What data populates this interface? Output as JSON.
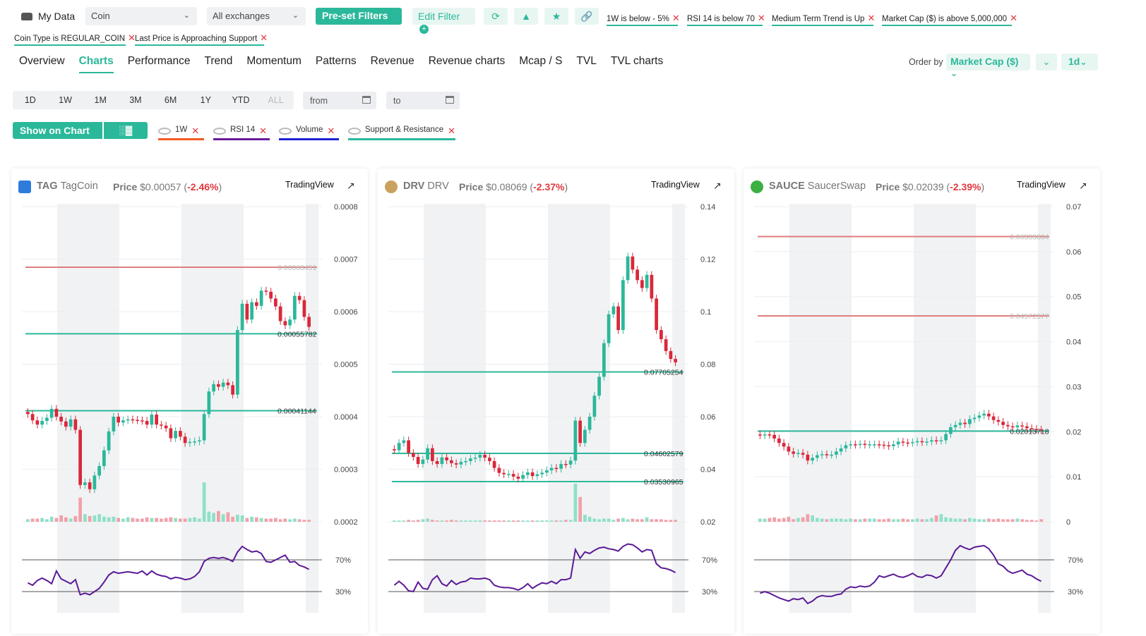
{
  "topbar": {
    "mydata_label": "My Data",
    "asset_select": "Coin",
    "exchange_select": "All exchanges",
    "preset_filters": "Pre-set Filters",
    "edit_filter": "Edit Filter",
    "filters": [
      "1W is below - 5%",
      "RSI 14 is below 70",
      "Medium Term Trend is Up",
      "Market Cap ($) is above 5,000,000",
      "Coin Type is REGULAR_COIN",
      "Last Price is Approaching Support"
    ]
  },
  "tabs": [
    "Overview",
    "Charts",
    "Performance",
    "Trend",
    "Momentum",
    "Patterns",
    "Revenue",
    "Revenue charts",
    "Mcap / S",
    "TVL",
    "TVL charts"
  ],
  "active_tab": "Charts",
  "order": {
    "label": "Order by",
    "value": "Market Cap ($)",
    "interval": "1d"
  },
  "periods": [
    "1D",
    "1W",
    "1M",
    "3M",
    "6M",
    "1Y",
    "YTD",
    "ALL"
  ],
  "date_from": "from",
  "date_to": "to",
  "show_on_chart": "Show on Chart",
  "indicators": [
    {
      "label": "1W",
      "color": "#f15a22"
    },
    {
      "label": "RSI 14",
      "color": "#6a1b9a"
    },
    {
      "label": "Volume",
      "color": "#1e22d4"
    },
    {
      "label": "Support & Resistance",
      "color": "#2bb89a"
    }
  ],
  "colors": {
    "accent": "#2bb89a",
    "up": "#2bb89a",
    "down": "#d9283a",
    "negative": "#e0393e",
    "rsi": "#5b1a96",
    "resistance": "#e07e7e",
    "support": "#2bb89a"
  },
  "cards": [
    {
      "symbol": "TAG",
      "name": "TagCoin",
      "price_label": "Price",
      "price": "$0.00057",
      "change": "-2.46%",
      "tv": "TradingView",
      "chart_data": {
        "type": "candlestick",
        "y_ticks": [
          "0.0008",
          "0.0007",
          "0.0006",
          "0.0005",
          "0.0004",
          "0.0003",
          "0.0002"
        ],
        "y_range": [
          0.0002,
          0.0008
        ],
        "rsi_ticks": [
          "70%",
          "30%"
        ],
        "levels": [
          {
            "label": "0.00068451",
            "value": 0.00068451,
            "kind": "resistance"
          },
          {
            "label": "0.00055782",
            "value": 0.00055782,
            "kind": "support"
          },
          {
            "label": "0.00041144",
            "value": 0.00041144,
            "kind": "support"
          }
        ],
        "closes": [
          0.000405,
          0.000393,
          0.000385,
          0.000392,
          0.000398,
          0.000415,
          0.0004,
          0.000391,
          0.000381,
          0.000395,
          0.000375,
          0.00027,
          0.000275,
          0.000262,
          0.000288,
          0.000306,
          0.000336,
          0.000372,
          0.0004,
          0.000389,
          0.000393,
          0.000395,
          0.000394,
          0.000393,
          0.000392,
          0.000385,
          0.000404,
          0.000385,
          0.000383,
          0.000378,
          0.000359,
          0.000373,
          0.000362,
          0.00035,
          0.000352,
          0.000353,
          0.000355,
          0.000405,
          0.000448,
          0.000462,
          0.000457,
          0.000465,
          0.00046,
          0.000442,
          0.000565,
          0.000615,
          0.000585,
          0.000618,
          0.000611,
          0.00064,
          0.000638,
          0.000625,
          0.00061,
          0.000582,
          0.000574,
          0.000585,
          0.00063,
          0.000622,
          0.00059,
          0.000571
        ],
        "volume": [
          0.04,
          0.05,
          0.05,
          0.06,
          0.04,
          0.08,
          0.06,
          0.1,
          0.07,
          0.05,
          0.09,
          0.38,
          0.12,
          0.09,
          0.1,
          0.12,
          0.08,
          0.07,
          0.08,
          0.06,
          0.05,
          0.07,
          0.06,
          0.05,
          0.05,
          0.07,
          0.06,
          0.06,
          0.05,
          0.06,
          0.07,
          0.06,
          0.05,
          0.05,
          0.06,
          0.07,
          0.05,
          0.62,
          0.16,
          0.14,
          0.17,
          0.12,
          0.15,
          0.08,
          0.11,
          0.1,
          0.06,
          0.08,
          0.07,
          0.06,
          0.05,
          0.05,
          0.06,
          0.04,
          0.05,
          0.04,
          0.05,
          0.04,
          0.03,
          0.03
        ],
        "rsi": [
          0.41,
          0.38,
          0.44,
          0.47,
          0.44,
          0.4,
          0.56,
          0.46,
          0.43,
          0.4,
          0.45,
          0.26,
          0.28,
          0.26,
          0.3,
          0.34,
          0.42,
          0.51,
          0.55,
          0.53,
          0.54,
          0.55,
          0.54,
          0.53,
          0.56,
          0.51,
          0.56,
          0.52,
          0.5,
          0.49,
          0.46,
          0.48,
          0.47,
          0.45,
          0.46,
          0.49,
          0.55,
          0.68,
          0.72,
          0.73,
          0.72,
          0.73,
          0.71,
          0.68,
          0.8,
          0.87,
          0.83,
          0.8,
          0.81,
          0.78,
          0.68,
          0.67,
          0.7,
          0.73,
          0.76,
          0.67,
          0.68,
          0.63,
          0.61,
          0.58
        ]
      }
    },
    {
      "symbol": "DRV",
      "name": "DRV",
      "price_label": "Price",
      "price": "$0.08069",
      "change": "-2.37%",
      "tv": "TradingView",
      "chart_data": {
        "type": "candlestick",
        "y_ticks": [
          "0.14",
          "0.12",
          "0.1",
          "0.08",
          "0.06",
          "0.04",
          "0.02"
        ],
        "y_range": [
          0.02,
          0.14
        ],
        "rsi_ticks": [
          "70%",
          "30%"
        ],
        "levels": [
          {
            "label": "0.07705254",
            "value": 0.07705254,
            "kind": "support"
          },
          {
            "label": "0.04602579",
            "value": 0.04602579,
            "kind": "support"
          },
          {
            "label": "0.03530965",
            "value": 0.03530965,
            "kind": "support"
          }
        ],
        "closes": [
          0.0472,
          0.05,
          0.051,
          0.0462,
          0.0447,
          0.042,
          0.0437,
          0.048,
          0.0431,
          0.042,
          0.0445,
          0.0434,
          0.0423,
          0.0418,
          0.0428,
          0.0431,
          0.0441,
          0.0444,
          0.0455,
          0.0444,
          0.0431,
          0.0405,
          0.0386,
          0.0381,
          0.0382,
          0.0372,
          0.0364,
          0.0378,
          0.0388,
          0.0374,
          0.0381,
          0.0387,
          0.0396,
          0.0405,
          0.0402,
          0.042,
          0.0418,
          0.0433,
          0.0585,
          0.05,
          0.055,
          0.06,
          0.068,
          0.0752,
          0.088,
          0.099,
          0.102,
          0.093,
          0.112,
          0.121,
          0.116,
          0.112,
          0.109,
          0.114,
          0.105,
          0.093,
          0.0895,
          0.085,
          0.082,
          0.0807
        ],
        "volume": [
          0.02,
          0.02,
          0.02,
          0.03,
          0.02,
          0.03,
          0.04,
          0.05,
          0.03,
          0.02,
          0.02,
          0.02,
          0.03,
          0.02,
          0.02,
          0.02,
          0.02,
          0.02,
          0.02,
          0.02,
          0.02,
          0.02,
          0.02,
          0.02,
          0.02,
          0.02,
          0.02,
          0.02,
          0.02,
          0.02,
          0.02,
          0.02,
          0.02,
          0.02,
          0.02,
          0.02,
          0.03,
          0.03,
          0.6,
          0.39,
          0.11,
          0.08,
          0.05,
          0.04,
          0.05,
          0.05,
          0.03,
          0.05,
          0.06,
          0.04,
          0.05,
          0.04,
          0.04,
          0.07,
          0.04,
          0.04,
          0.04,
          0.03,
          0.03,
          0.03
        ],
        "rsi": [
          0.38,
          0.43,
          0.38,
          0.31,
          0.3,
          0.42,
          0.34,
          0.33,
          0.45,
          0.5,
          0.4,
          0.37,
          0.44,
          0.39,
          0.42,
          0.43,
          0.47,
          0.46,
          0.46,
          0.47,
          0.45,
          0.38,
          0.36,
          0.35,
          0.35,
          0.34,
          0.32,
          0.35,
          0.4,
          0.34,
          0.38,
          0.41,
          0.4,
          0.43,
          0.4,
          0.45,
          0.45,
          0.47,
          0.83,
          0.72,
          0.8,
          0.78,
          0.82,
          0.85,
          0.86,
          0.84,
          0.83,
          0.81,
          0.87,
          0.9,
          0.89,
          0.85,
          0.8,
          0.83,
          0.82,
          0.65,
          0.6,
          0.59,
          0.57,
          0.54
        ]
      }
    },
    {
      "symbol": "SAUCE",
      "name": "SaucerSwap",
      "price_label": "Price",
      "price": "$0.02039",
      "change": "-2.39%",
      "tv": "TradingView",
      "chart_data": {
        "type": "candlestick",
        "y_ticks": [
          "0.07",
          "0.06",
          "0.05",
          "0.04",
          "0.03",
          "0.02",
          "0.01",
          "0"
        ],
        "y_range": [
          0.0,
          0.07
        ],
        "rsi_ticks": [
          "70%",
          "30%"
        ],
        "levels": [
          {
            "label": "0.06333804",
            "value": 0.06333804,
            "kind": "resistance"
          },
          {
            "label": "0.04572377",
            "value": 0.04572377,
            "kind": "resistance"
          },
          {
            "label": "0.02013718",
            "value": 0.02013718,
            "kind": "support"
          }
        ],
        "closes": [
          0.0192,
          0.0194,
          0.0193,
          0.0185,
          0.0175,
          0.0167,
          0.0156,
          0.0151,
          0.0153,
          0.0149,
          0.0136,
          0.0142,
          0.0148,
          0.015,
          0.0149,
          0.0149,
          0.0156,
          0.0163,
          0.017,
          0.0172,
          0.0171,
          0.0173,
          0.0171,
          0.0172,
          0.0172,
          0.0171,
          0.017,
          0.0168,
          0.0172,
          0.0178,
          0.0176,
          0.0175,
          0.0177,
          0.0179,
          0.0177,
          0.0178,
          0.0181,
          0.018,
          0.0181,
          0.0195,
          0.021,
          0.0215,
          0.022,
          0.0217,
          0.0228,
          0.0231,
          0.0236,
          0.024,
          0.0234,
          0.0226,
          0.0222,
          0.0215,
          0.0212,
          0.021,
          0.0214,
          0.0212,
          0.0208,
          0.0206,
          0.0205,
          0.0204
        ],
        "volume": [
          0.05,
          0.05,
          0.06,
          0.07,
          0.05,
          0.06,
          0.08,
          0.04,
          0.06,
          0.07,
          0.12,
          0.1,
          0.06,
          0.05,
          0.04,
          0.05,
          0.05,
          0.05,
          0.04,
          0.05,
          0.04,
          0.04,
          0.05,
          0.05,
          0.05,
          0.04,
          0.04,
          0.05,
          0.04,
          0.04,
          0.05,
          0.04,
          0.04,
          0.05,
          0.04,
          0.04,
          0.06,
          0.1,
          0.12,
          0.07,
          0.06,
          0.05,
          0.05,
          0.04,
          0.06,
          0.05,
          0.04,
          0.04,
          0.05,
          0.04,
          0.05,
          0.04,
          0.04,
          0.04,
          0.05,
          0.04,
          0.03,
          0.03,
          0.02,
          0.04
        ],
        "rsi": [
          0.28,
          0.3,
          0.28,
          0.25,
          0.22,
          0.2,
          0.18,
          0.21,
          0.2,
          0.22,
          0.15,
          0.18,
          0.23,
          0.25,
          0.24,
          0.24,
          0.26,
          0.27,
          0.33,
          0.36,
          0.35,
          0.37,
          0.36,
          0.37,
          0.42,
          0.5,
          0.48,
          0.5,
          0.52,
          0.49,
          0.48,
          0.5,
          0.53,
          0.49,
          0.48,
          0.51,
          0.5,
          0.47,
          0.5,
          0.6,
          0.7,
          0.82,
          0.88,
          0.85,
          0.83,
          0.86,
          0.87,
          0.88,
          0.84,
          0.76,
          0.65,
          0.62,
          0.56,
          0.53,
          0.55,
          0.57,
          0.52,
          0.5,
          0.46,
          0.43
        ]
      }
    }
  ]
}
